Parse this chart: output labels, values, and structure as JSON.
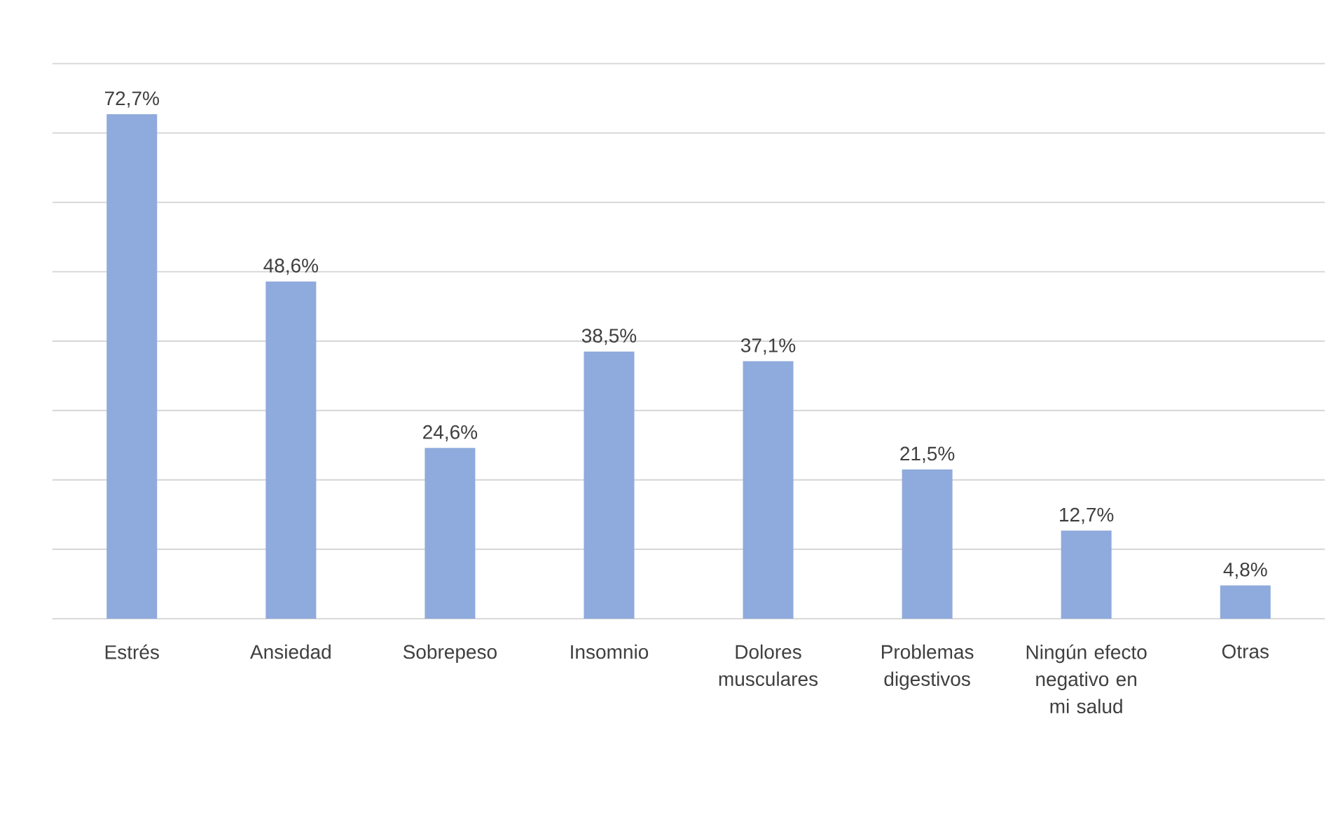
{
  "chart_data": {
    "type": "bar",
    "categories": [
      "Estrés",
      "Ansiedad",
      "Sobrepeso",
      "Insomnio",
      "Dolores musculares",
      "Problemas digestivos",
      "Ningún efecto negativo en mi salud",
      "Otras"
    ],
    "values": [
      72.7,
      48.6,
      24.6,
      38.5,
      37.1,
      21.5,
      12.7,
      4.8
    ],
    "value_labels": [
      "72,7%",
      "48,6%",
      "24,6%",
      "38,5%",
      "37,1%",
      "21,5%",
      "12,7%",
      "4,8%"
    ],
    "color": "#8faadc",
    "ylim": [
      0,
      80
    ],
    "yticks": [
      {
        "value": 0,
        "label": null
      },
      {
        "value": 10,
        "label": null
      },
      {
        "value": 20,
        "label": null
      },
      {
        "value": 30,
        "label": null
      },
      {
        "value": 40,
        "label": null
      },
      {
        "value": 50,
        "label": null
      },
      {
        "value": 60,
        "label": null
      },
      {
        "value": 70,
        "label": null
      },
      {
        "value": 80,
        "label": null
      }
    ],
    "grid": "y",
    "tick_labels": "x"
  }
}
